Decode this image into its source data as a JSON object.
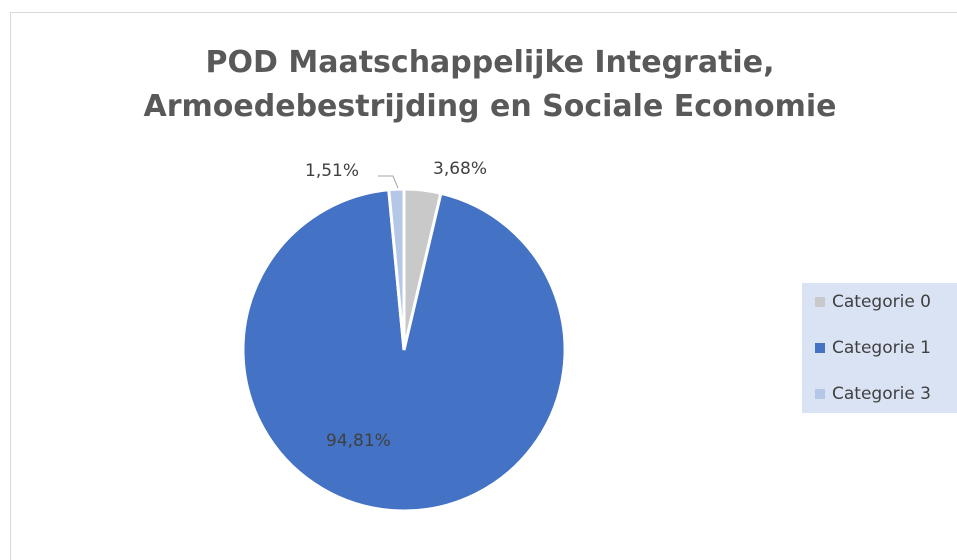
{
  "chart_data": {
    "type": "pie",
    "title": [
      "POD Maatschappelijke Integratie,",
      "Armoedebestrijding en Sociale Economie"
    ],
    "categories": [
      "Categorie 0",
      "Categorie 1",
      "Categorie 3"
    ],
    "values": [
      3.68,
      94.81,
      1.51
    ],
    "value_labels": [
      "3,68%",
      "94,81%",
      "1,51%"
    ],
    "colors": [
      "#c9c9c9",
      "#4472c4",
      "#b4c7e7"
    ],
    "legend": "right"
  }
}
